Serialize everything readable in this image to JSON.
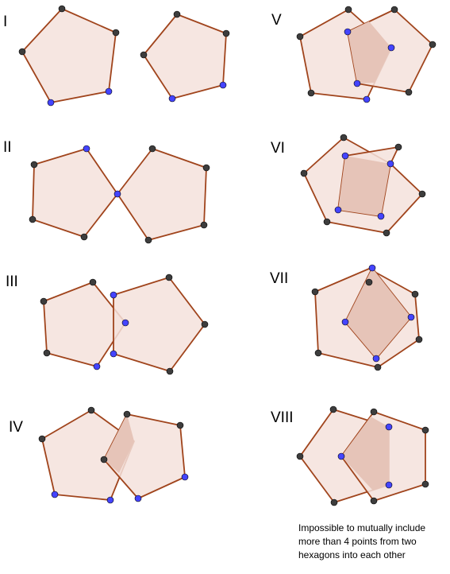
{
  "panels": [
    {
      "label": "I"
    },
    {
      "label": "II"
    },
    {
      "label": "III"
    },
    {
      "label": "IV"
    },
    {
      "label": "V"
    },
    {
      "label": "VI"
    },
    {
      "label": "VII"
    },
    {
      "label": "VIII"
    }
  ],
  "note": "Impossible to mutually include more than 4 points from two hexagons into each other",
  "colors": {
    "polygon_fill": "#f5e2dc",
    "polygon_stroke": "#a0441c",
    "overlap_fill": "#e6c4b8",
    "point_dark": "#3d3d3d",
    "point_blue": "#4444ff"
  }
}
